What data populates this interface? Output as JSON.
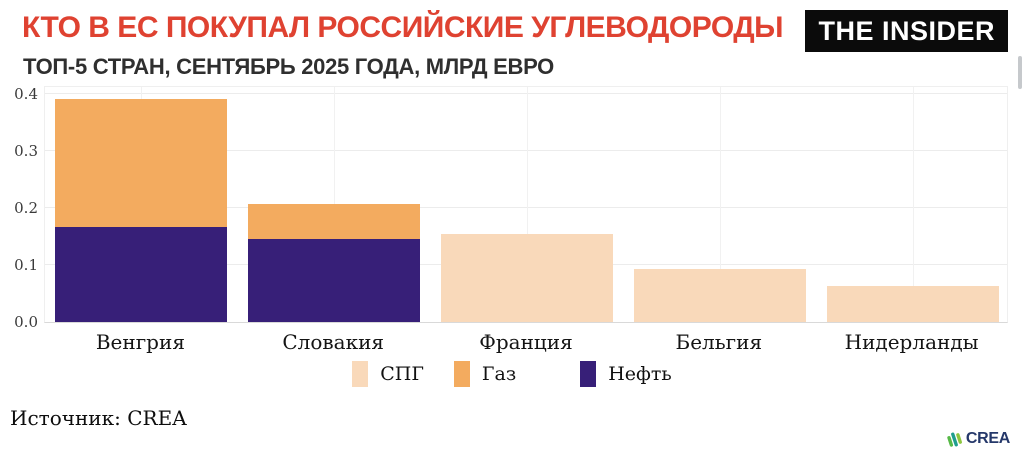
{
  "header": {
    "title": "КТО В ЕС ПОКУПАЛ РОССИЙСКИЕ УГЛЕВОДОРОДЫ",
    "subtitle": "ТОП-5 СТРАН, СЕНТЯБРЬ 2025 ГОДА, МЛРД ЕВРО",
    "title_color": "#df4231"
  },
  "logo": {
    "text": "THE INSIDER",
    "bg": "#0b0b0b",
    "fg": "#ffffff"
  },
  "chart_data": {
    "type": "bar",
    "stacked": true,
    "title": "КТО В ЕС ПОКУПАЛ РОССИЙСКИЕ УГЛЕВОДОРОДЫ",
    "subtitle": "ТОП-5 СТРАН, СЕНТЯБРЬ 2025 ГОДА, МЛРД ЕВРО",
    "unit": "млрд евро",
    "categories": [
      "Венгрия",
      "Словакия",
      "Франция",
      "Бельгия",
      "Нидерланды"
    ],
    "series": [
      {
        "name": "СПГ",
        "color": "#f9d9ba",
        "values": [
          0,
          0,
          0.154,
          0.093,
          0.063
        ]
      },
      {
        "name": "Газ",
        "color": "#f3ab5f",
        "values": [
          0.225,
          0.061,
          0,
          0,
          0
        ]
      },
      {
        "name": "Нефть",
        "color": "#371f78",
        "values": [
          0.167,
          0.146,
          0,
          0,
          0
        ]
      }
    ],
    "stack_order_bottom_to_top": [
      "Нефть",
      "Газ",
      "СПГ"
    ],
    "totals": [
      0.392,
      0.207,
      0.154,
      0.093,
      0.063
    ],
    "ylim": [
      0,
      0.4
    ],
    "yticks": [
      0.0,
      0.1,
      0.2,
      0.3,
      0.4
    ],
    "grid": true,
    "legend_position": "bottom"
  },
  "footer": {
    "source": "Источник: CREA",
    "crea_logo_text": "CREA"
  }
}
